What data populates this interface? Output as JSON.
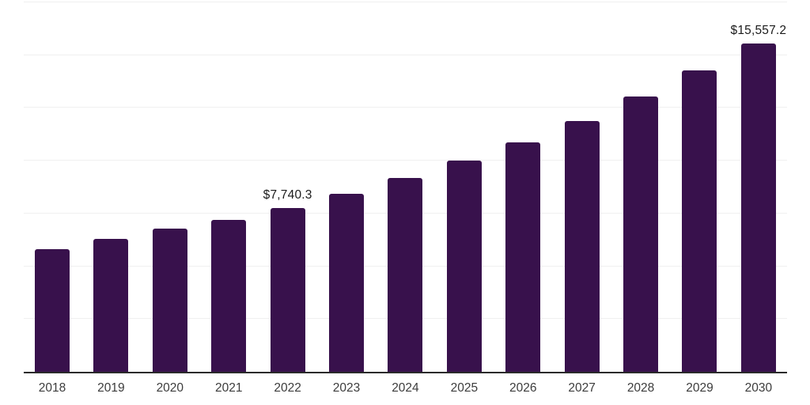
{
  "chart_data": {
    "type": "bar",
    "title": "",
    "xlabel": "",
    "ylabel": "",
    "categories": [
      "2018",
      "2019",
      "2020",
      "2021",
      "2022",
      "2023",
      "2024",
      "2025",
      "2026",
      "2027",
      "2028",
      "2029",
      "2030"
    ],
    "values": [
      5820,
      6310,
      6800,
      7210,
      7740.3,
      8420,
      9170,
      10000,
      10870,
      11880,
      13040,
      14290,
      15557.2
    ],
    "ylim": [
      0,
      17500
    ],
    "grid_step": 2500,
    "grid": true,
    "legend": false,
    "annotations": [
      {
        "category": "2022",
        "label": "$7,740.3"
      },
      {
        "category": "2030",
        "label": "$15,557.2"
      }
    ]
  },
  "colors": {
    "bar": "#38114C",
    "gridline": "#f0f0f0",
    "axis": "#2b2b2b",
    "value_label": "#1b1b1b",
    "tick_label": "#3c3c3c",
    "background": "#ffffff"
  }
}
